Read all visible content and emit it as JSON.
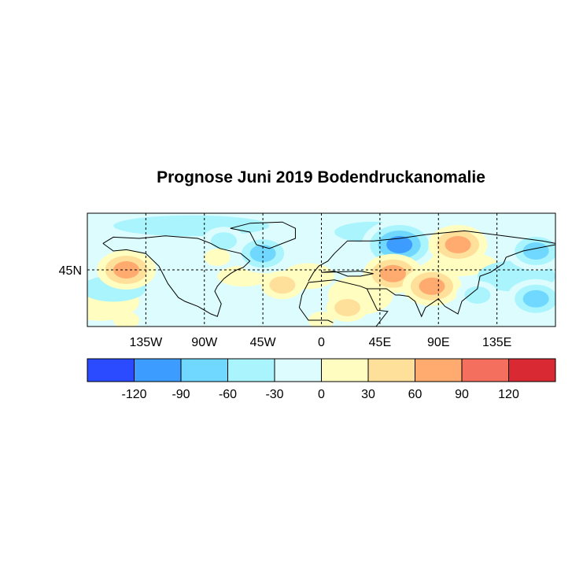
{
  "chart_data": {
    "type": "heatmap",
    "title": "Prognose Juni 2019 Bodendruckanomalie",
    "xlim": [
      -180,
      180
    ],
    "ylim": [
      0,
      90
    ],
    "x_ticks": [
      {
        "value": -135,
        "label": "135W"
      },
      {
        "value": -90,
        "label": "90W"
      },
      {
        "value": -45,
        "label": "45W"
      },
      {
        "value": 0,
        "label": "0"
      },
      {
        "value": 45,
        "label": "45E"
      },
      {
        "value": 90,
        "label": "90E"
      },
      {
        "value": 135,
        "label": "135E"
      }
    ],
    "y_ticks": [
      {
        "value": 45,
        "label": "45N"
      }
    ],
    "grid": "dashed",
    "colorbar": {
      "levels": [
        -120,
        -90,
        -60,
        -30,
        0,
        30,
        60,
        90,
        120
      ],
      "labels": [
        "-120",
        "-90",
        "-60",
        "-30",
        "0",
        "30",
        "60",
        "90",
        "120"
      ],
      "colors": [
        "#2a4bff",
        "#3d9cff",
        "#70d8ff",
        "#a9f4fd",
        "#ddfcfe",
        "#fffec0",
        "#ffe09a",
        "#ffab70",
        "#f46f5e",
        "#d92a33"
      ],
      "placement": "bottom"
    },
    "anomaly_features": [
      {
        "lon": -150,
        "lat": 45,
        "value": 95
      },
      {
        "lon": -30,
        "lat": 33,
        "value": 70
      },
      {
        "lon": -45,
        "lat": 58,
        "value": -95
      },
      {
        "lon": -75,
        "lat": 68,
        "value": -60
      },
      {
        "lon": -80,
        "lat": 55,
        "value": 40
      },
      {
        "lon": 60,
        "lat": 65,
        "value": -125
      },
      {
        "lon": 105,
        "lat": 65,
        "value": 95
      },
      {
        "lon": 55,
        "lat": 42,
        "value": 95
      },
      {
        "lon": 85,
        "lat": 32,
        "value": 95
      },
      {
        "lon": 165,
        "lat": 60,
        "value": -95
      },
      {
        "lon": 165,
        "lat": 22,
        "value": -95
      },
      {
        "lon": 120,
        "lat": 25,
        "value": -50
      },
      {
        "lon": 20,
        "lat": 15,
        "value": 65
      },
      {
        "lon": -150,
        "lat": 5,
        "value": 40
      },
      {
        "lon": 0,
        "lat": 5,
        "value": 40
      }
    ]
  }
}
